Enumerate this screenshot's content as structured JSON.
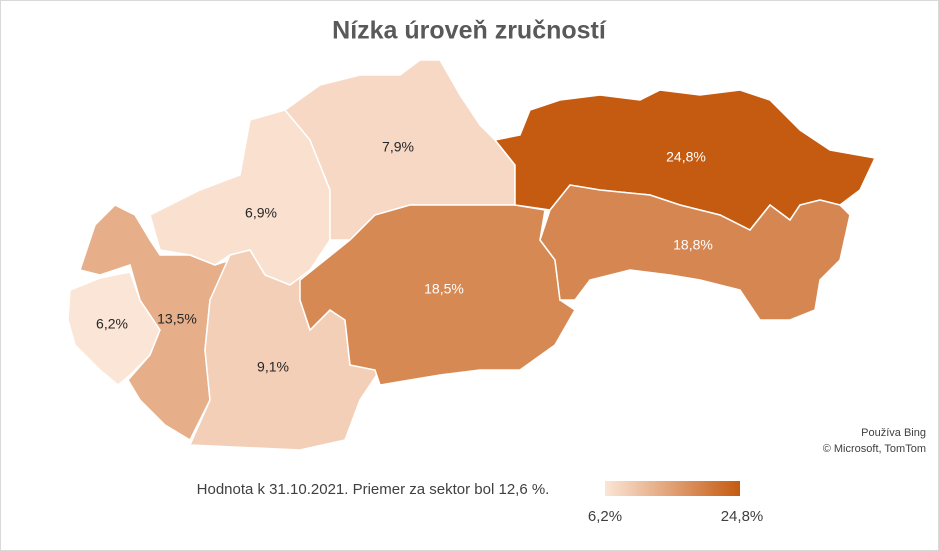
{
  "chart_data": {
    "type": "map",
    "title": "Nízka úroveň zručností",
    "values": [
      6.2,
      13.5,
      6.9,
      9.1,
      7.9,
      18.5,
      24.8,
      18.8
    ],
    "value_labels": [
      "6,2%",
      "13,5%",
      "6,9%",
      "9,1%",
      "7,9%",
      "18,5%",
      "24,8%",
      "18,8%"
    ],
    "color_scale": {
      "range": [
        {
          "value": 6.2,
          "label": "6,2%"
        },
        {
          "value": 24.8,
          "label": "24,8%"
        }
      ],
      "colors": [
        "#fbe5d6",
        "#c55a11"
      ]
    },
    "note": "Hodnota k 31.10.2021. Priemer za sektor bol 12,6 %.",
    "attribution": [
      "Používa Bing",
      "© Microsoft, TomTom"
    ]
  }
}
